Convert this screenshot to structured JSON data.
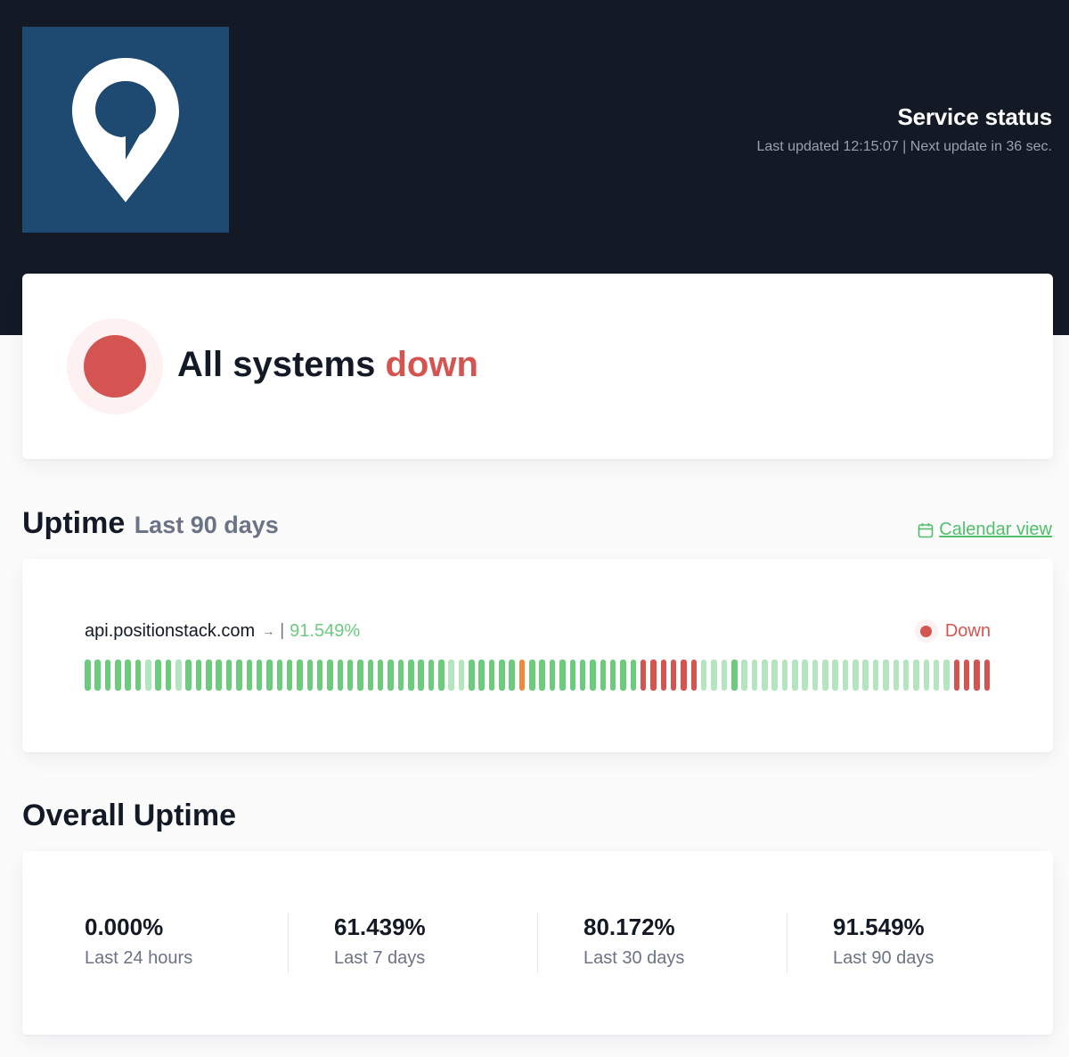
{
  "header": {
    "logo_icon": "map-pin-icon",
    "title": "Service status",
    "meta": "Last updated 12:15:07 | Next update in 36 sec."
  },
  "hero": {
    "prefix": "All systems ",
    "state": "down",
    "state_color": "#d35450"
  },
  "uptime": {
    "title": "Uptime",
    "period": "Last 90 days",
    "calendar_link": "Calendar view",
    "calendar_icon": "calendar-icon",
    "monitor": {
      "name": "api.positionstack.com",
      "arrow": "→",
      "separator": "|",
      "uptime_pct": "91.549%",
      "status": "Down",
      "days": [
        "g",
        "g",
        "g",
        "g",
        "g",
        "g",
        "lg",
        "g",
        "g",
        "lg",
        "g",
        "g",
        "g",
        "g",
        "g",
        "g",
        "g",
        "g",
        "g",
        "g",
        "g",
        "g",
        "g",
        "g",
        "g",
        "g",
        "g",
        "g",
        "g",
        "g",
        "g",
        "g",
        "g",
        "g",
        "g",
        "g",
        "lg",
        "lg",
        "g",
        "g",
        "g",
        "g",
        "g",
        "o",
        "g",
        "g",
        "g",
        "g",
        "g",
        "g",
        "g",
        "g",
        "g",
        "g",
        "g",
        "r",
        "r",
        "r",
        "r",
        "r",
        "r",
        "lg",
        "lg",
        "lg",
        "g",
        "lg",
        "lg",
        "lg",
        "lg",
        "lg",
        "lg",
        "lg",
        "lg",
        "lg",
        "lg",
        "lg",
        "lg",
        "lg",
        "lg",
        "lg",
        "lg",
        "lg",
        "lg",
        "lg",
        "lg",
        "lg",
        "r",
        "r",
        "r",
        "r"
      ]
    },
    "colors": {
      "g": "#6ccb7c",
      "lg": "#b3e6be",
      "o": "#ef8a3c",
      "r": "#d35450"
    }
  },
  "overall": {
    "title": "Overall Uptime",
    "stats": [
      {
        "value": "0.000%",
        "label": "Last 24 hours"
      },
      {
        "value": "61.439%",
        "label": "Last 7 days"
      },
      {
        "value": "80.172%",
        "label": "Last 30 days"
      },
      {
        "value": "91.549%",
        "label": "Last 90 days"
      }
    ]
  }
}
